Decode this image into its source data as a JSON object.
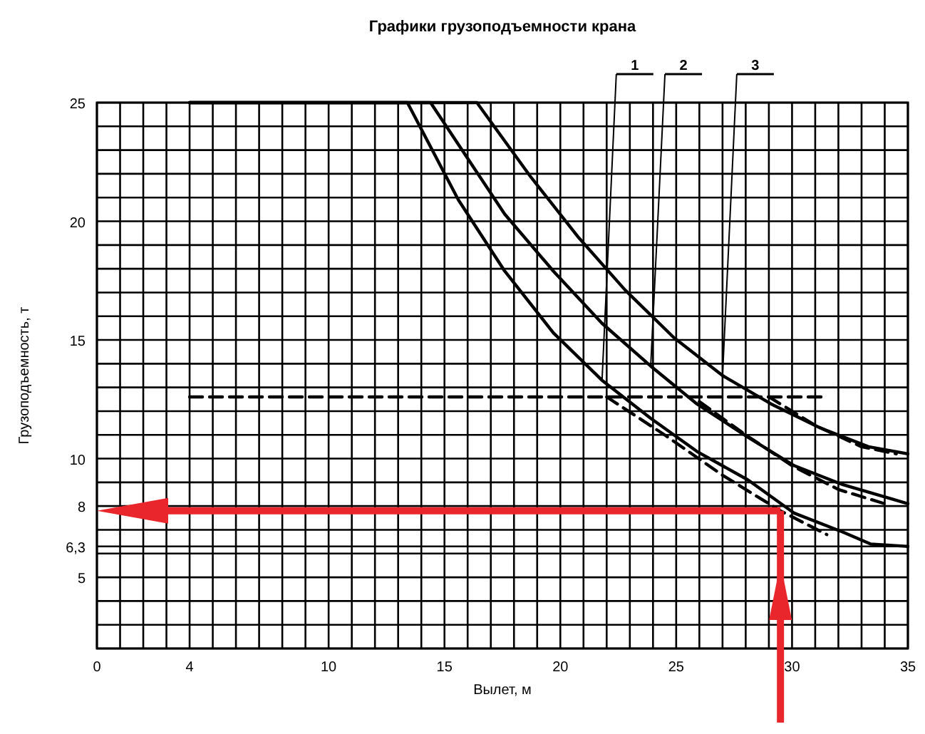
{
  "chart_data": {
    "type": "line",
    "title": "Графики грузоподъемности крана",
    "xlabel": "Вылет, м",
    "ylabel": "Грузоподъемность, т",
    "xlim": [
      0,
      35
    ],
    "ylim": [
      2,
      25
    ],
    "xticks": [
      0,
      {
        "value": 1,
        "label": null
      },
      {
        "value": 2,
        "label": null
      },
      {
        "value": 3,
        "label": null
      },
      4,
      {
        "value": 5,
        "label": null
      },
      {
        "value": 6,
        "label": null
      },
      {
        "value": 7,
        "label": null
      },
      {
        "value": 8,
        "label": null
      },
      {
        "value": 9,
        "label": null
      },
      10,
      {
        "value": 11,
        "label": null
      },
      {
        "value": 12,
        "label": null
      },
      {
        "value": 13,
        "label": null
      },
      {
        "value": 14,
        "label": null
      },
      15,
      {
        "value": 16,
        "label": null
      },
      {
        "value": 17,
        "label": null
      },
      {
        "value": 18,
        "label": null
      },
      {
        "value": 19,
        "label": null
      },
      20,
      {
        "value": 21,
        "label": null
      },
      {
        "value": 22,
        "label": null
      },
      {
        "value": 23,
        "label": null
      },
      {
        "value": 24,
        "label": null
      },
      25,
      {
        "value": 26,
        "label": null
      },
      {
        "value": 27,
        "label": null
      },
      {
        "value": 28,
        "label": null
      },
      {
        "value": 29,
        "label": null
      },
      30,
      {
        "value": 31,
        "label": null
      },
      {
        "value": 32,
        "label": null
      },
      {
        "value": 33,
        "label": null
      },
      {
        "value": 34,
        "label": null
      },
      35
    ],
    "yticks": [
      {
        "value": 2,
        "label": null
      },
      {
        "value": 3,
        "label": null
      },
      {
        "value": 4,
        "label": null
      },
      5,
      {
        "value": 6,
        "label": null
      },
      {
        "value": 6.3,
        "label": "6,3"
      },
      {
        "value": 7,
        "label": null
      },
      8,
      {
        "value": 9,
        "label": null
      },
      10,
      {
        "value": 11,
        "label": null
      },
      {
        "value": 12,
        "label": null
      },
      {
        "value": 13,
        "label": null
      },
      {
        "value": 14,
        "label": null
      },
      15,
      {
        "value": 16,
        "label": null
      },
      {
        "value": 17,
        "label": null
      },
      {
        "value": 18,
        "label": null
      },
      {
        "value": 19,
        "label": null
      },
      20,
      {
        "value": 21,
        "label": null
      },
      {
        "value": 22,
        "label": null
      },
      {
        "value": 23,
        "label": null
      },
      {
        "value": 24,
        "label": null
      },
      25
    ],
    "grid": true,
    "line_style": "solid",
    "marker": "none",
    "legend": "top right",
    "series": [
      {
        "name": "1",
        "color": "#000000",
        "x": [
          4,
          13.4,
          15.6,
          17.6,
          19.7,
          21.8,
          23.9,
          25.9,
          28.1,
          30.1,
          32.2,
          33.4,
          35
        ],
        "values": [
          25,
          25,
          20.9,
          17.9,
          15.3,
          13.3,
          11.7,
          10.3,
          9.1,
          7.7,
          6.9,
          6.4,
          6.3
        ]
      },
      {
        "name": "2",
        "color": "#000000",
        "x": [
          4,
          14.4,
          17.6,
          19.7,
          21.8,
          23.9,
          25.9,
          28.1,
          30.1,
          32.2,
          34.3,
          35
        ],
        "values": [
          25,
          25,
          20.3,
          17.9,
          15.7,
          13.9,
          12.3,
          10.9,
          9.7,
          8.9,
          8.3,
          8.1
        ]
      },
      {
        "name": "3",
        "color": "#000000",
        "x": [
          4,
          16.4,
          18.7,
          20.8,
          22.8,
          24.9,
          27,
          29.1,
          31.2,
          33.3,
          35
        ],
        "values": [
          25,
          25,
          21.9,
          19.3,
          17.1,
          15.1,
          13.5,
          12.3,
          11.3,
          10.5,
          10.2
        ]
      },
      {
        "color": "#000000",
        "line_style": "dashed",
        "x": [
          4,
          31.5
        ],
        "values": [
          12.6,
          12.6
        ]
      },
      {
        "color": "#000000",
        "line_style": "dashed",
        "x": [
          22,
          24.5,
          27,
          29.5,
          31.5
        ],
        "values": [
          12.6,
          11,
          9.3,
          7.8,
          6.8
        ]
      },
      {
        "color": "#000000",
        "line_style": "dashed",
        "x": [
          26,
          28,
          30,
          32,
          34
        ],
        "values": [
          12.4,
          11,
          9.7,
          8.7,
          8.1
        ]
      },
      {
        "color": "#000000",
        "line_style": "dashed",
        "x": [
          29,
          31,
          33,
          34.5
        ],
        "values": [
          12.6,
          11.4,
          10.5,
          10.2
        ]
      }
    ],
    "ref_lines": [
      {
        "axis": "y",
        "value": 7.8,
        "color": "#e8262b"
      },
      {
        "axis": "x",
        "value": 29.5,
        "color": "#e8262b"
      }
    ]
  }
}
